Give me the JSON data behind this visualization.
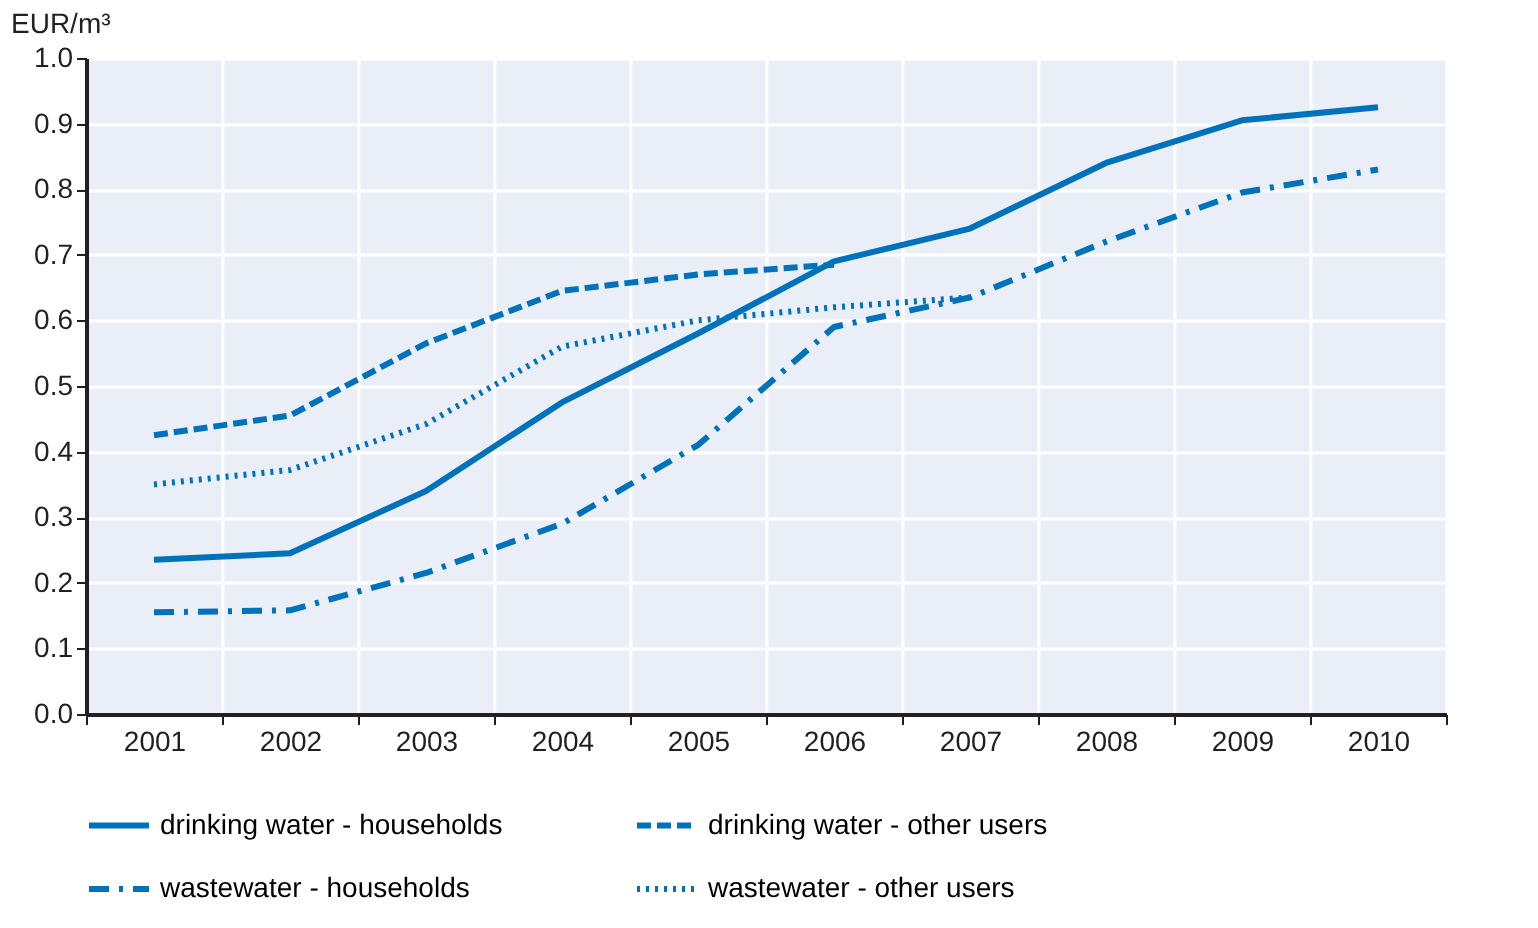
{
  "chart_data": {
    "type": "line",
    "ylabel": "EUR/m³",
    "categories": [
      "2001",
      "2002",
      "2003",
      "2004",
      "2005",
      "2006",
      "2007",
      "2008",
      "2009",
      "2010"
    ],
    "series": [
      {
        "name": "drinking water - households",
        "color": "#0072bc",
        "line_style": "solid",
        "values": [
          0.235,
          0.245,
          0.34,
          0.475,
          0.58,
          0.69,
          0.74,
          0.84,
          0.905,
          0.925
        ]
      },
      {
        "name": "drinking water - other users",
        "color": "#0072bc",
        "line_style": "dashed",
        "values": [
          0.425,
          0.455,
          0.565,
          0.645,
          0.67,
          0.685,
          null,
          null,
          null,
          null
        ]
      },
      {
        "name": "wastewater - households",
        "color": "#0072bc",
        "line_style": "dashdot",
        "values": [
          0.155,
          0.158,
          0.215,
          0.29,
          0.41,
          0.59,
          0.635,
          0.72,
          0.795,
          0.83
        ]
      },
      {
        "name": "wastewater - other users",
        "color": "#0072bc",
        "line_style": "dotted",
        "values": [
          0.35,
          0.372,
          0.442,
          0.56,
          0.6,
          0.62,
          0.635,
          null,
          null,
          null
        ]
      }
    ],
    "ylim": [
      0,
      1.0
    ],
    "yticks": [
      {
        "value": 0,
        "label": "0.0"
      },
      {
        "value": 0.1,
        "label": "0.1"
      },
      {
        "value": 0.2,
        "label": "0.2"
      },
      {
        "value": 0.3,
        "label": "0.3"
      },
      {
        "value": 0.4,
        "label": "0.4"
      },
      {
        "value": 0.5,
        "label": "0.5"
      },
      {
        "value": 0.6,
        "label": "0.6"
      },
      {
        "value": 0.7,
        "label": "0.7"
      },
      {
        "value": 0.8,
        "label": "0.8"
      },
      {
        "value": 0.9,
        "label": "0.9"
      },
      {
        "value": 1.0,
        "label": "1.0"
      }
    ],
    "grid": true,
    "legend": "bottom",
    "marker": "none"
  }
}
